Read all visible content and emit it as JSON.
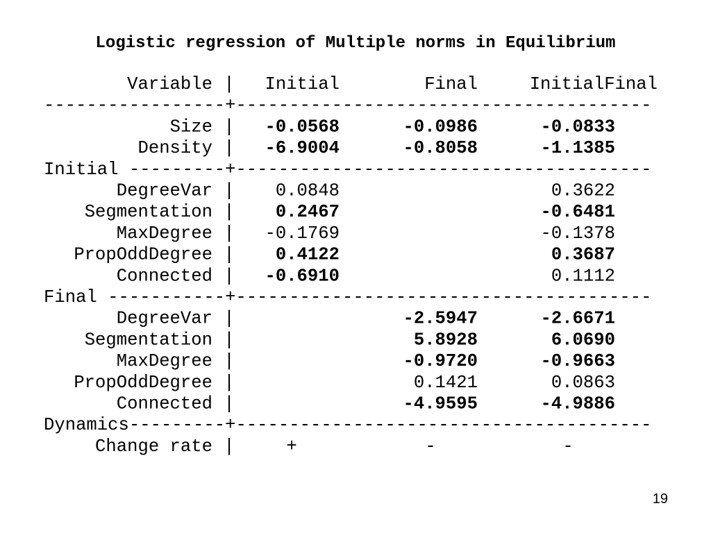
{
  "title": "Logistic regression of Multiple norms in Equilibrium",
  "page_number": "19",
  "table": {
    "separator": "|",
    "header": {
      "variable": "Variable",
      "initial": "Initial",
      "final": "Final",
      "initial_final": "InitialFinal"
    },
    "lines": [
      {
        "rule": "-----------------+---------------------------------------"
      },
      {
        "variable": "Size",
        "initial": {
          "text": "-0.0568",
          "bold": true
        },
        "final": {
          "text": "-0.0986",
          "bold": true
        },
        "initial_final": {
          "text": "-0.0833",
          "bold": true
        }
      },
      {
        "variable": "Density",
        "initial": {
          "text": "-6.9004",
          "bold": true
        },
        "final": {
          "text": "-0.8058",
          "bold": true
        },
        "initial_final": {
          "text": "-1.1385",
          "bold": true
        }
      },
      {
        "rule": "Initial ---------+---------------------------------------"
      },
      {
        "variable": "DegreeVar",
        "initial": {
          "text": "0.0848",
          "bold": false
        },
        "initial_final": {
          "text": "0.3622",
          "bold": false
        }
      },
      {
        "variable": "Segmentation",
        "initial": {
          "text": "0.2467",
          "bold": true
        },
        "initial_final": {
          "text": "-0.6481",
          "bold": true
        }
      },
      {
        "variable": "MaxDegree",
        "initial": {
          "text": "-0.1769",
          "bold": false
        },
        "initial_final": {
          "text": "-0.1378",
          "bold": false
        }
      },
      {
        "variable": "PropOddDegree",
        "initial": {
          "text": "0.4122",
          "bold": true
        },
        "initial_final": {
          "text": "0.3687",
          "bold": true
        }
      },
      {
        "variable": "Connected",
        "initial": {
          "text": "-0.6910",
          "bold": true
        },
        "initial_final": {
          "text": "0.1112",
          "bold": false
        }
      },
      {
        "rule": "Final -----------+---------------------------------------"
      },
      {
        "variable": "DegreeVar",
        "final": {
          "text": "-2.5947",
          "bold": true
        },
        "initial_final": {
          "text": "-2.6671",
          "bold": true
        }
      },
      {
        "variable": "Segmentation",
        "final": {
          "text": "5.8928",
          "bold": true
        },
        "initial_final": {
          "text": "6.0690",
          "bold": true
        }
      },
      {
        "variable": "MaxDegree",
        "final": {
          "text": "-0.9720",
          "bold": true
        },
        "initial_final": {
          "text": "-0.9663",
          "bold": true
        }
      },
      {
        "variable": "PropOddDegree",
        "final": {
          "text": "0.1421",
          "bold": false
        },
        "initial_final": {
          "text": "0.0863",
          "bold": false
        }
      },
      {
        "variable": "Connected",
        "final": {
          "text": "-4.9595",
          "bold": true
        },
        "initial_final": {
          "text": "-4.9886",
          "bold": true
        }
      },
      {
        "rule": "Dynamics---------+---------------------------------------"
      },
      {
        "variable": "Change rate",
        "align": "center",
        "initial": {
          "text": "+",
          "bold": false
        },
        "final": {
          "text": "-",
          "bold": false
        },
        "initial_final": {
          "text": "-",
          "bold": false
        }
      }
    ]
  }
}
